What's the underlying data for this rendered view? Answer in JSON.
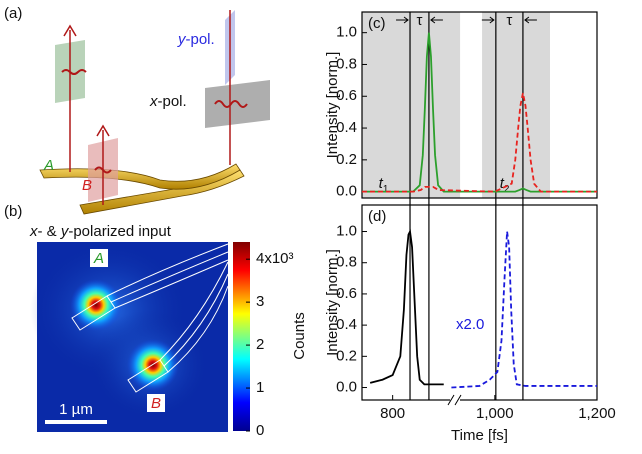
{
  "panel_a": {
    "label": "(a)",
    "y_pol": [
      "y",
      "-pol."
    ],
    "x_pol": [
      "x",
      "-pol."
    ],
    "port_a": "A",
    "port_b": "B"
  },
  "panel_b": {
    "label": "(b)",
    "title": [
      "x",
      "- & ",
      "y",
      "-polarized input"
    ],
    "port_a": "A",
    "port_b": "B",
    "scale_bar": "1 µm",
    "colorbar": {
      "label": "Counts",
      "lim": [
        0,
        4.4
      ],
      "ticks": [
        0,
        1,
        2,
        3,
        {
          "value": 4,
          "label": "4x10³"
        }
      ]
    }
  },
  "chart_data": [
    {
      "type": "line",
      "panel_label": "(c)",
      "ylabel": "Intensity [norm.]",
      "xlim": [
        740,
        1200
      ],
      "ylim": [
        -0.04,
        1.13
      ],
      "yticks": [
        {
          "value": 0,
          "label": "0.0"
        },
        {
          "value": 0.2,
          "label": "0.2"
        },
        {
          "value": 0.4,
          "label": "0.4"
        },
        {
          "value": 0.6,
          "label": "0.6"
        },
        {
          "value": 0.8,
          "label": "0.8"
        },
        {
          "value": 1.0,
          "label": "1.0"
        }
      ],
      "shaded_regions": [
        [
          740,
          932
        ],
        [
          975,
          1108
        ]
      ],
      "shade_color": "#d9d9d9",
      "vlines": [
        834,
        871,
        1002,
        1055
      ],
      "tau_label": "τ",
      "t_labels": [
        {
          "main": "t",
          "sub": "1",
          "x": 753
        },
        {
          "main": "t",
          "sub": "2",
          "x": 990
        }
      ],
      "series": [
        {
          "color": "#2ca02c",
          "line_style": "solid",
          "x": [
            740,
            800,
            840,
            853,
            859,
            863,
            867,
            871,
            875,
            879,
            883,
            889,
            900,
            1000,
            1040,
            1048,
            1055,
            1062,
            1070,
            1200
          ],
          "values": [
            0,
            0,
            0,
            0.04,
            0.23,
            0.52,
            0.85,
            1.0,
            0.85,
            0.52,
            0.23,
            0.04,
            0,
            0,
            0,
            0.01,
            0.02,
            0.01,
            0,
            0
          ]
        },
        {
          "color": "#e8231f",
          "line_style": "dashed",
          "x": [
            740,
            840,
            855,
            863,
            871,
            879,
            890,
            1000,
            1033,
            1040,
            1046,
            1050,
            1055,
            1060,
            1064,
            1070,
            1077,
            1090,
            1200
          ],
          "values": [
            0,
            0,
            0.01,
            0.03,
            0.03,
            0.03,
            0.01,
            0,
            0.05,
            0.2,
            0.41,
            0.54,
            0.62,
            0.54,
            0.41,
            0.2,
            0.05,
            0,
            0
          ]
        }
      ]
    },
    {
      "type": "line",
      "panel_label": "(d)",
      "ylabel": "Intensity [norm.]",
      "xlabel": "Time [fs]",
      "xlim": [
        740,
        1200
      ],
      "ylim": [
        -0.08,
        1.17
      ],
      "xticks": [
        800,
        {
          "value": 1000,
          "label": "1,000"
        },
        {
          "value": 1200,
          "label": "1,200"
        }
      ],
      "yticks": [
        {
          "value": 0,
          "label": "0.0"
        },
        {
          "value": 0.2,
          "label": "0.2"
        },
        {
          "value": 0.4,
          "label": "0.4"
        },
        {
          "value": 0.6,
          "label": "0.6"
        },
        {
          "value": 0.8,
          "label": "0.8"
        },
        {
          "value": 1.0,
          "label": "1.0"
        }
      ],
      "annotation": "x2.0",
      "series": [
        {
          "color": "#000000",
          "line_style": "solid",
          "x": [
            756,
            780,
            800,
            815,
            822,
            827,
            831,
            834,
            838,
            843,
            848,
            853,
            862,
            900
          ],
          "values": [
            0.03,
            0.05,
            0.08,
            0.2,
            0.5,
            0.85,
            0.98,
            1.0,
            0.9,
            0.55,
            0.2,
            0.05,
            0.02,
            0.02
          ]
        },
        {
          "color": "#1a1adc",
          "line_style": "dashed",
          "x": [
            915,
            970,
            990,
            1005,
            1013,
            1019,
            1024,
            1028,
            1032,
            1037,
            1043,
            1060,
            1200
          ],
          "values": [
            0,
            0.01,
            0.05,
            0.1,
            0.3,
            0.7,
            1.0,
            0.9,
            0.5,
            0.15,
            0.02,
            0.01,
            0.01
          ]
        }
      ]
    }
  ]
}
